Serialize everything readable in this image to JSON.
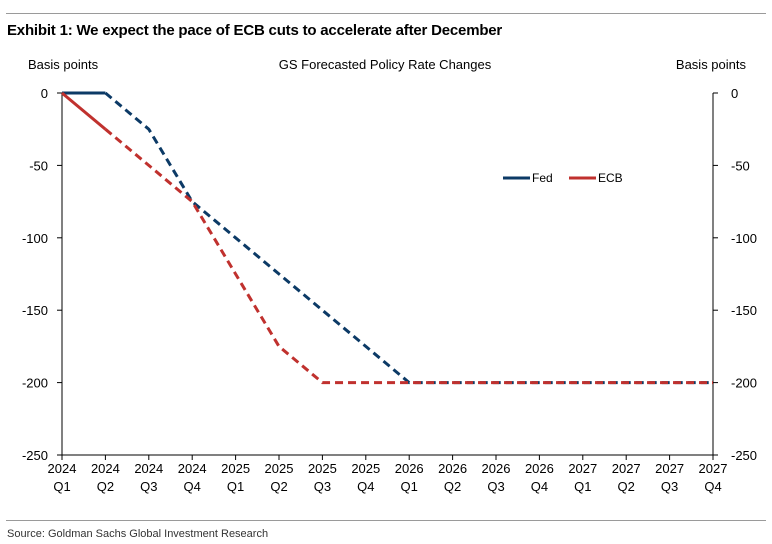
{
  "exhibit_title": "Exhibit 1: We expect the pace of ECB cuts to accelerate after December",
  "source": "Source: Goldman Sachs Global Investment Research",
  "chart_data": {
    "type": "line",
    "title": "GS Forecasted Policy Rate Changes",
    "ylabel_left": "Basis points",
    "ylabel_right": "Basis points",
    "ylim": [
      -250,
      0
    ],
    "yticks": [
      0,
      -50,
      -100,
      -150,
      -200,
      -250
    ],
    "categories": [
      [
        "2024",
        "Q1"
      ],
      [
        "2024",
        "Q2"
      ],
      [
        "2024",
        "Q3"
      ],
      [
        "2024",
        "Q4"
      ],
      [
        "2025",
        "Q1"
      ],
      [
        "2025",
        "Q2"
      ],
      [
        "2025",
        "Q3"
      ],
      [
        "2025",
        "Q4"
      ],
      [
        "2026",
        "Q1"
      ],
      [
        "2026",
        "Q2"
      ],
      [
        "2026",
        "Q3"
      ],
      [
        "2026",
        "Q4"
      ],
      [
        "2027",
        "Q1"
      ],
      [
        "2027",
        "Q2"
      ],
      [
        "2027",
        "Q3"
      ],
      [
        "2027",
        "Q4"
      ]
    ],
    "actual_through_index": 1,
    "legend_position": "right",
    "series": [
      {
        "name": "Fed",
        "color": "#0c3a66",
        "values": [
          0,
          0,
          -25,
          -75,
          -100,
          -125,
          -150,
          -175,
          -200,
          -200,
          -200,
          -200,
          -200,
          -200,
          -200,
          -200
        ]
      },
      {
        "name": "ECB",
        "color": "#c0312e",
        "values": [
          0,
          -25,
          -50,
          -75,
          -125,
          -175,
          -200,
          -200,
          -200,
          -200,
          -200,
          -200,
          -200,
          -200,
          -200,
          -200
        ]
      }
    ]
  }
}
